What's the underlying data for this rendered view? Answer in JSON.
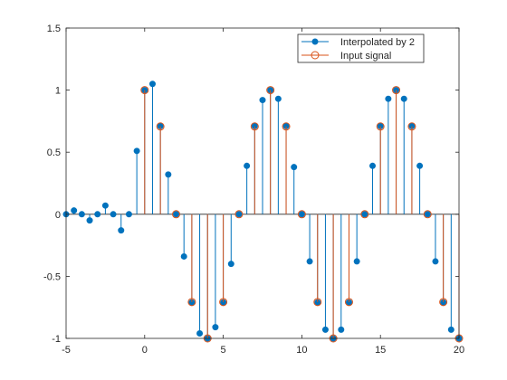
{
  "chart_data": {
    "type": "stem",
    "title": "",
    "xlabel": "",
    "ylabel": "",
    "xlim": [
      -5,
      20
    ],
    "ylim": [
      -1,
      1.5
    ],
    "x_ticks": [
      -5,
      0,
      5,
      10,
      15,
      20
    ],
    "y_ticks": [
      -1,
      -0.5,
      0,
      0.5,
      1,
      1.5
    ],
    "x_tick_labels": [
      "-5",
      "0",
      "5",
      "10",
      "15",
      "20"
    ],
    "y_tick_labels": [
      "-1",
      "-0.5",
      "0",
      "0.5",
      "1",
      "1.5"
    ],
    "grid": false,
    "legend_position": "top-right",
    "series": [
      {
        "name": "Interpolated by 2",
        "color": "#0072BD",
        "marker": "filled-circle",
        "x": [
          -5,
          -4.5,
          -4,
          -3.5,
          -3,
          -2.5,
          -2,
          -1.5,
          -1,
          -0.5,
          0,
          0.5,
          1,
          1.5,
          2,
          2.5,
          3,
          3.5,
          4,
          4.5,
          5,
          5.5,
          6,
          6.5,
          7,
          7.5,
          8,
          8.5,
          9,
          9.5,
          10,
          10.5,
          11,
          11.5,
          12,
          12.5,
          13,
          13.5,
          14,
          14.5,
          15,
          15.5,
          16,
          16.5,
          17,
          17.5,
          18,
          18.5,
          19,
          19.5,
          20
        ],
        "y": [
          0,
          0.03,
          0,
          -0.05,
          0,
          0.07,
          0,
          -0.13,
          0,
          0.51,
          1.0,
          1.05,
          0.71,
          0.32,
          0,
          -0.34,
          -0.71,
          -0.96,
          -1.0,
          -0.91,
          -0.71,
          -0.4,
          0,
          0.39,
          0.71,
          0.92,
          1.0,
          0.93,
          0.71,
          0.38,
          0,
          -0.38,
          -0.71,
          -0.93,
          -1.0,
          -0.93,
          -0.71,
          -0.38,
          0,
          0.39,
          0.71,
          0.93,
          1.0,
          0.93,
          0.71,
          0.39,
          0,
          -0.38,
          -0.71,
          -0.93,
          -1.0
        ]
      },
      {
        "name": "Input signal",
        "color": "#D95319",
        "marker": "open-circle",
        "x": [
          0,
          1,
          2,
          3,
          4,
          5,
          6,
          7,
          8,
          9,
          10,
          11,
          12,
          13,
          14,
          15,
          16,
          17,
          18,
          19,
          20
        ],
        "y": [
          1.0,
          0.7071,
          0,
          -0.7071,
          -1.0,
          -0.7071,
          0,
          0.7071,
          1.0,
          0.7071,
          0,
          -0.7071,
          -1.0,
          -0.7071,
          0,
          0.7071,
          1.0,
          0.7071,
          0,
          -0.7071,
          -1.0
        ]
      }
    ]
  }
}
